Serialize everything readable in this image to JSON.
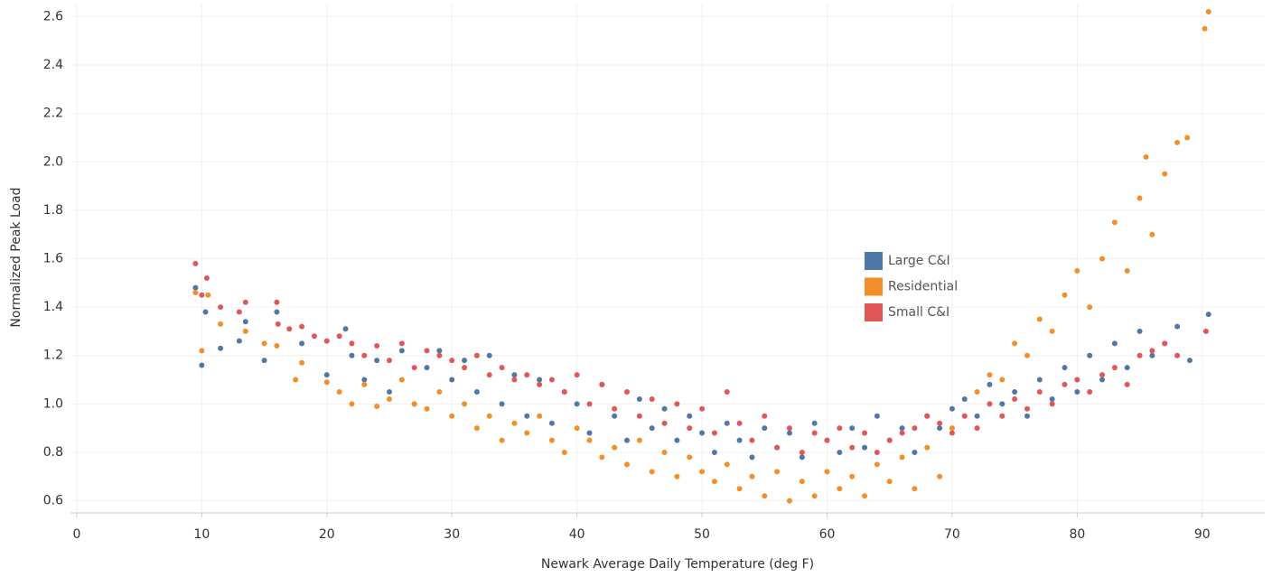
{
  "chart_data": {
    "type": "scatter",
    "x_label": "Newark Average Daily Temperature (deg F)",
    "y_label": "Normalized Peak Load",
    "xlim": [
      -0.5,
      95
    ],
    "ylim": [
      0.55,
      2.65
    ],
    "xticks": [
      0,
      10,
      20,
      30,
      40,
      50,
      60,
      70,
      80,
      90
    ],
    "yticks": [
      0.6,
      0.8,
      {
        "value": 1,
        "label": "1.0"
      },
      1.2,
      1.4,
      1.6,
      1.8,
      {
        "value": 2,
        "label": "2.0"
      },
      2.2,
      2.4,
      2.6
    ],
    "grid": true,
    "legend": "right",
    "series": [
      {
        "name": "Large C&I",
        "color": "#4e79a7",
        "x": [
          9.5,
          10,
          10.3,
          11.5,
          13,
          13.5,
          15,
          16,
          18,
          20,
          21.5,
          22,
          23,
          24,
          25,
          26,
          27,
          28,
          29,
          30,
          31,
          32,
          33,
          34,
          35,
          36,
          37,
          38,
          39,
          40,
          41,
          42,
          43,
          44,
          45,
          46,
          47,
          48,
          49,
          50,
          51,
          52,
          53,
          54,
          55,
          56,
          57,
          58,
          59,
          60,
          61,
          62,
          63,
          64,
          65,
          66,
          67,
          68,
          69,
          70,
          71,
          72,
          73,
          74,
          75,
          76,
          77,
          78,
          79,
          80,
          81,
          82,
          83,
          84,
          85,
          86,
          87,
          88,
          89,
          90.5
        ],
        "values": [
          1.48,
          1.16,
          1.38,
          1.23,
          1.26,
          1.34,
          1.18,
          1.38,
          1.25,
          1.12,
          1.31,
          1.2,
          1.1,
          1.18,
          1.05,
          1.22,
          1.0,
          1.15,
          1.22,
          1.1,
          1.18,
          1.05,
          1.2,
          1.0,
          1.12,
          0.95,
          1.1,
          0.92,
          1.05,
          1.0,
          0.88,
          1.08,
          0.95,
          0.85,
          1.02,
          0.9,
          0.98,
          0.85,
          0.95,
          0.88,
          0.8,
          0.92,
          0.85,
          0.78,
          0.9,
          0.82,
          0.88,
          0.78,
          0.92,
          0.85,
          0.8,
          0.9,
          0.82,
          0.95,
          0.85,
          0.9,
          0.8,
          0.95,
          0.9,
          0.98,
          1.02,
          0.95,
          1.08,
          1.0,
          1.05,
          0.95,
          1.1,
          1.02,
          1.15,
          1.05,
          1.2,
          1.1,
          1.25,
          1.15,
          1.3,
          1.2,
          1.25,
          1.32,
          1.18,
          1.37
        ]
      },
      {
        "name": "Residential",
        "color": "#f28e2b",
        "x": [
          9.5,
          10,
          10.5,
          11.5,
          13.5,
          15,
          16,
          17.5,
          18,
          20,
          21,
          22,
          23,
          24,
          25,
          26,
          27,
          28,
          29,
          30,
          31,
          32,
          33,
          34,
          35,
          36,
          37,
          38,
          39,
          40,
          41,
          42,
          43,
          44,
          45,
          46,
          47,
          48,
          49,
          50,
          51,
          52,
          53,
          54,
          55,
          56,
          57,
          58,
          59,
          60,
          61,
          62,
          63,
          64,
          65,
          66,
          67,
          68,
          69,
          70,
          71,
          72,
          73,
          74,
          75,
          76,
          77,
          78,
          79,
          80,
          81,
          82,
          83,
          84,
          85,
          85.5,
          86,
          87,
          88,
          88.8,
          90.2,
          90.5
        ],
        "values": [
          1.46,
          1.22,
          1.45,
          1.33,
          1.3,
          1.25,
          1.24,
          1.1,
          1.17,
          1.09,
          1.05,
          1.0,
          1.08,
          0.99,
          1.02,
          1.1,
          1.0,
          0.98,
          1.05,
          0.95,
          1.0,
          0.9,
          0.95,
          0.85,
          0.92,
          0.88,
          0.95,
          0.85,
          0.8,
          0.9,
          0.85,
          0.78,
          0.82,
          0.75,
          0.85,
          0.72,
          0.8,
          0.7,
          0.78,
          0.72,
          0.68,
          0.75,
          0.65,
          0.7,
          0.62,
          0.72,
          0.6,
          0.68,
          0.62,
          0.72,
          0.65,
          0.7,
          0.62,
          0.75,
          0.68,
          0.78,
          0.65,
          0.82,
          0.7,
          0.9,
          0.95,
          1.05,
          1.12,
          1.1,
          1.25,
          1.2,
          1.35,
          1.3,
          1.45,
          1.55,
          1.4,
          1.6,
          1.75,
          1.55,
          1.85,
          2.02,
          1.7,
          1.95,
          2.08,
          2.1,
          2.55,
          2.62
        ]
      },
      {
        "name": "Small C&I",
        "color": "#e15759",
        "x": [
          9.5,
          10,
          10.4,
          11.5,
          13,
          13.5,
          16,
          16.1,
          17,
          18,
          19,
          20,
          21,
          22,
          23,
          24,
          25,
          26,
          27,
          28,
          29,
          30,
          31,
          32,
          33,
          34,
          35,
          36,
          37,
          38,
          39,
          40,
          41,
          42,
          43,
          44,
          45,
          46,
          47,
          48,
          49,
          50,
          51,
          52,
          53,
          54,
          55,
          56,
          57,
          58,
          59,
          60,
          61,
          62,
          63,
          64,
          65,
          66,
          67,
          68,
          69,
          70,
          71,
          72,
          73,
          74,
          75,
          76,
          77,
          78,
          79,
          80,
          81,
          82,
          83,
          84,
          85,
          86,
          87,
          88,
          90.3
        ],
        "values": [
          1.58,
          1.45,
          1.52,
          1.4,
          1.38,
          1.42,
          1.42,
          1.33,
          1.31,
          1.32,
          1.28,
          1.26,
          1.28,
          1.25,
          1.2,
          1.24,
          1.18,
          1.25,
          1.15,
          1.22,
          1.2,
          1.18,
          1.15,
          1.2,
          1.12,
          1.15,
          1.1,
          1.12,
          1.08,
          1.1,
          1.05,
          1.12,
          1.0,
          1.08,
          0.98,
          1.05,
          0.95,
          1.02,
          0.92,
          1.0,
          0.9,
          0.98,
          0.88,
          1.05,
          0.92,
          0.85,
          0.95,
          0.82,
          0.9,
          0.8,
          0.88,
          0.85,
          0.9,
          0.82,
          0.88,
          0.8,
          0.85,
          0.88,
          0.9,
          0.95,
          0.92,
          0.88,
          0.95,
          0.9,
          1.0,
          0.95,
          1.02,
          0.98,
          1.05,
          1.0,
          1.08,
          1.1,
          1.05,
          1.12,
          1.15,
          1.08,
          1.2,
          1.22,
          1.25,
          1.2,
          1.3
        ]
      }
    ]
  }
}
